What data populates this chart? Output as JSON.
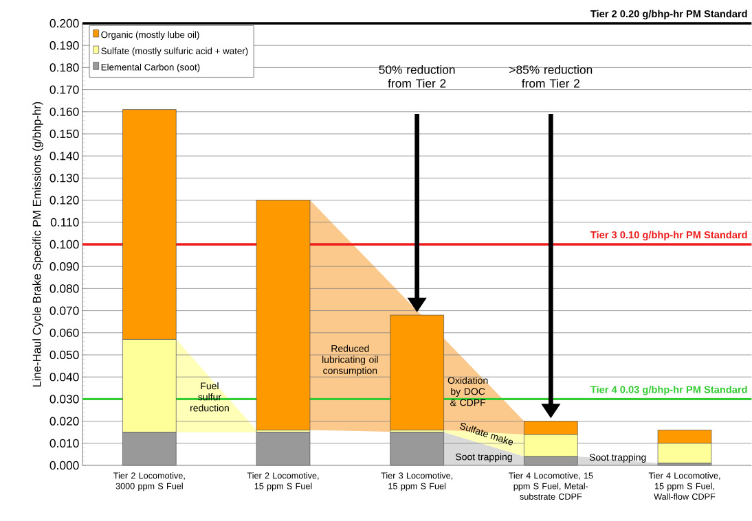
{
  "chart_data": {
    "type": "bar",
    "stacked": true,
    "ylabel": "Line-Haul Cycle Brake Specific PM Emissions (g/bhp-hr)",
    "categories": [
      "Tier 2 Locomotive, 3000 ppm S Fuel",
      "Tier 2 Locomotive, 15 ppm S Fuel",
      "Tier 3 Locomotive, 15 ppm S Fuel",
      "Tier 4 Locomotive, 15 ppm S Fuel, Metal-substrate CDPF",
      "Tier 4 Locomotive, 15 ppm S Fuel, Wall-flow CDPF"
    ],
    "series": [
      {
        "name": "Elemental Carbon (soot)",
        "color": "#999999",
        "values": [
          0.015,
          0.015,
          0.015,
          0.004,
          0.001
        ]
      },
      {
        "name": "Sulfate (mostly sulfuric acid + water)",
        "color": "#ffff99",
        "values": [
          0.042,
          0.001,
          0.001,
          0.01,
          0.009
        ]
      },
      {
        "name": "Organic (mostly lube oil)",
        "color": "#ff9900",
        "values": [
          0.104,
          0.104,
          0.052,
          0.006,
          0.006
        ]
      }
    ],
    "ylim": [
      0,
      0.2
    ],
    "yticks": [
      {
        "value": 0,
        "label": "0.000"
      },
      {
        "value": 0.01,
        "label": "0.010"
      },
      {
        "value": 0.02,
        "label": "0.020"
      },
      {
        "value": 0.03,
        "label": "0.030"
      },
      {
        "value": 0.04,
        "label": "0.040"
      },
      {
        "value": 0.05,
        "label": "0.050"
      },
      {
        "value": 0.06,
        "label": "0.060"
      },
      {
        "value": 0.07,
        "label": "0.070"
      },
      {
        "value": 0.08,
        "label": "0.080"
      },
      {
        "value": 0.09,
        "label": "0.090"
      },
      {
        "value": 0.1,
        "label": "0.100"
      },
      {
        "value": 0.11,
        "label": "0.110"
      },
      {
        "value": 0.12,
        "label": "0.120"
      },
      {
        "value": 0.13,
        "label": "0.130"
      },
      {
        "value": 0.14,
        "label": "0.140"
      },
      {
        "value": 0.15,
        "label": "0.150"
      },
      {
        "value": 0.16,
        "label": "0.160"
      },
      {
        "value": 0.17,
        "label": "0.170"
      },
      {
        "value": 0.18,
        "label": "0.180"
      },
      {
        "value": 0.19,
        "label": "0.190"
      },
      {
        "value": 0.2,
        "label": "0.200"
      }
    ],
    "grid": "y",
    "legend": "top left",
    "ref_lines": [
      {
        "axis": "y",
        "value": 0.2,
        "label": "Tier 2 0.20 g/bhp-hr PM Standard",
        "color": "#000000"
      },
      {
        "axis": "y",
        "value": 0.1,
        "label": "Tier 3 0.10 g/bhp-hr PM Standard",
        "color": "#ee1c1c"
      },
      {
        "axis": "y",
        "value": 0.03,
        "label": "Tier 4 0.03 g/bhp-hr PM Standard",
        "color": "#33cc33"
      }
    ],
    "annotations": [
      "50% reduction from Tier 2",
      ">85% reduction from Tier 2",
      "Fuel sulfur reduction",
      "Reduced lubricating oil consumption",
      "Oxidation by DOC & CDPF",
      "Sulfate make",
      "Soot trapping",
      "Soot trapping"
    ]
  }
}
